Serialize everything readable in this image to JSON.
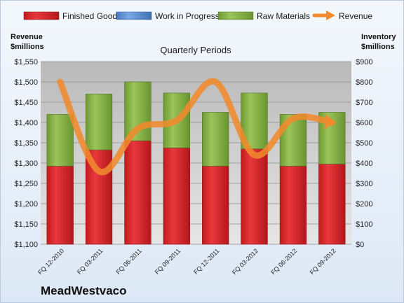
{
  "chart_data": {
    "type": "bar",
    "subtitle": "Quarterly Periods",
    "brand": "MeadWestvaco",
    "left_axis": {
      "label_line1": "Revenue",
      "label_line2": "$millions",
      "range": [
        1100,
        1550
      ],
      "ticks": [
        "$1,100",
        "$1,150",
        "$1,200",
        "$1,250",
        "$1,300",
        "$1,350",
        "$1,400",
        "$1,450",
        "$1,500",
        "$1,550"
      ]
    },
    "right_axis": {
      "label_line1": "Inventory",
      "label_line2": "$millions",
      "range": [
        0,
        900
      ],
      "ticks": [
        "$0",
        "$100",
        "$200",
        "$300",
        "$400",
        "$500",
        "$600",
        "$700",
        "$800",
        "$900"
      ]
    },
    "categories": [
      "FQ 12-2010",
      "FQ 03-2011",
      "FQ 06-2011",
      "FQ 09-2011",
      "FQ 12-2011",
      "FQ 03-2012",
      "FQ 06-2012",
      "FQ 09-2012"
    ],
    "series": [
      {
        "name": "Finished Goods",
        "type": "stacked-bar",
        "axis": "right",
        "color": "#e0262b",
        "values": [
          385,
          465,
          510,
          475,
          385,
          470,
          385,
          395
        ]
      },
      {
        "name": "Work in Progress",
        "type": "stacked-bar",
        "axis": "right",
        "color": "#5b8fd4",
        "values": [
          0,
          0,
          0,
          0,
          0,
          0,
          0,
          0
        ]
      },
      {
        "name": "Raw Materials",
        "type": "stacked-bar",
        "axis": "right",
        "color": "#8db84a",
        "values": [
          255,
          275,
          290,
          270,
          265,
          275,
          255,
          255
        ]
      },
      {
        "name": "Revenue",
        "type": "line",
        "axis": "left",
        "color": "#f08a2c",
        "values": [
          1500,
          1280,
          1385,
          1405,
          1500,
          1320,
          1410,
          1400
        ]
      }
    ],
    "legend_position": "top",
    "grid": true
  }
}
